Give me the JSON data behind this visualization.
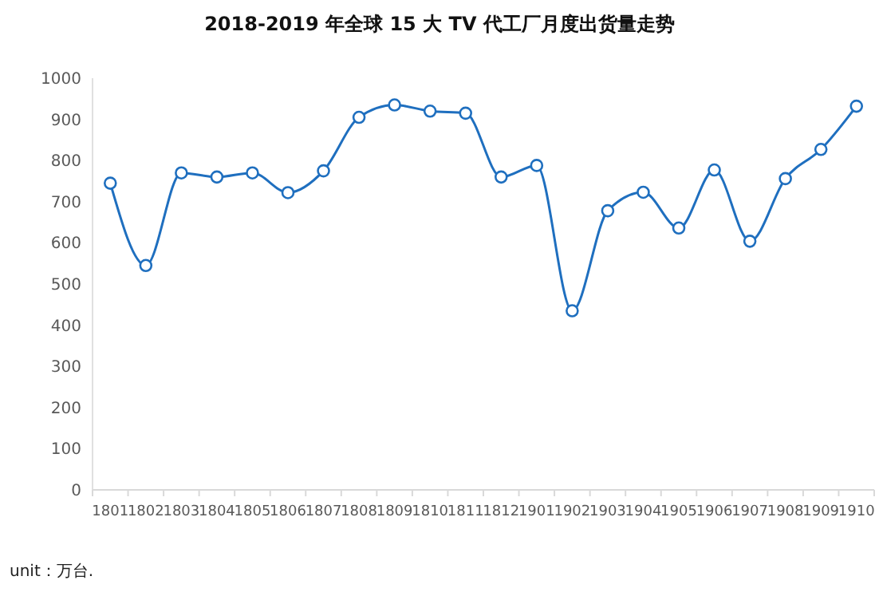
{
  "chart_data": {
    "type": "line",
    "title": "2018-2019 年全球 15 大 TV 代工厂月度出货量走势",
    "categories": [
      "1801",
      "1802",
      "1803",
      "1804",
      "1805",
      "1806",
      "1807",
      "1808",
      "1809",
      "1810",
      "1811",
      "1812",
      "1901",
      "1902",
      "1903",
      "1904",
      "1905",
      "1906",
      "1907",
      "1908",
      "1909",
      "1910"
    ],
    "series": [
      {
        "color": "#1f6fbf",
        "values": [
          745,
          545,
          770,
          760,
          770,
          722,
          775,
          905,
          935,
          920,
          915,
          760,
          788,
          435,
          678,
          723,
          636,
          777,
          604,
          756,
          827,
          932
        ]
      }
    ],
    "ylim": [
      0,
      1000
    ],
    "yticks": [
      0,
      100,
      200,
      300,
      400,
      500,
      600,
      700,
      800,
      900,
      1000
    ],
    "grid": false,
    "marker": "circle",
    "line_style": "solid",
    "annotations": [
      "unit：万台."
    ]
  }
}
